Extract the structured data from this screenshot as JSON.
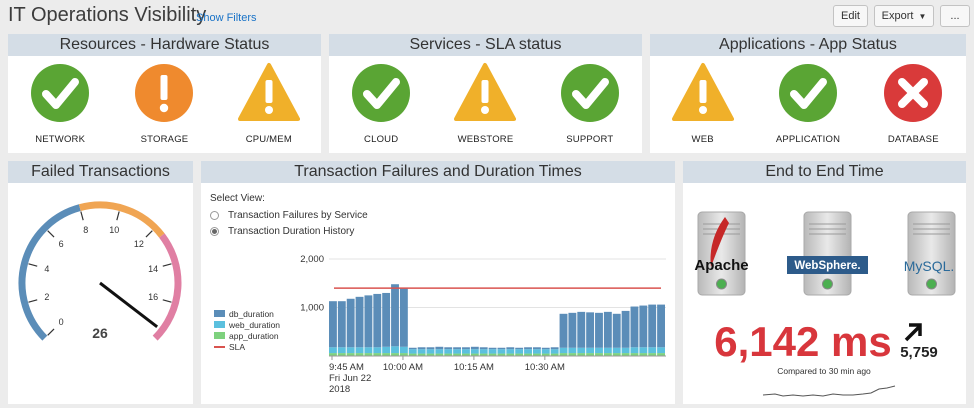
{
  "header": {
    "title": "IT Operations Visibility",
    "show_filters": "Show Filters",
    "edit": "Edit",
    "export": "Export",
    "more": "..."
  },
  "colors": {
    "ok": "#5aa534",
    "warn": "#f0b02a",
    "critical": "#d93a3a",
    "storage": "#ef8a2e",
    "panel_header": "#d4dde6",
    "bar": "#5b8db8",
    "sla": "#d9534f",
    "big_number": "#d8363c"
  },
  "resources": {
    "title": "Resources - Hardware Status",
    "items": [
      {
        "label": "NETWORK",
        "status": "ok",
        "icon": "check-icon"
      },
      {
        "label": "STORAGE",
        "status": "storage",
        "icon": "exclamation-icon"
      },
      {
        "label": "CPU/MEM",
        "status": "warn",
        "icon": "warning-icon"
      }
    ]
  },
  "services": {
    "title": "Services - SLA status",
    "items": [
      {
        "label": "CLOUD",
        "status": "ok",
        "icon": "check-icon"
      },
      {
        "label": "WEBSTORE",
        "status": "warn",
        "icon": "warning-icon"
      },
      {
        "label": "SUPPORT",
        "status": "ok",
        "icon": "check-icon"
      }
    ]
  },
  "applications": {
    "title": "Applications - App Status",
    "items": [
      {
        "label": "WEB",
        "status": "warn",
        "icon": "warning-icon"
      },
      {
        "label": "APPLICATION",
        "status": "ok",
        "icon": "check-icon"
      },
      {
        "label": "DATABASE",
        "status": "critical",
        "icon": "x-icon"
      }
    ]
  },
  "failed": {
    "title": "Failed Transactions",
    "value": "26",
    "ticks": [
      "0",
      "2",
      "4",
      "6",
      "8",
      "10",
      "12",
      "14",
      "16"
    ]
  },
  "txn": {
    "title": "Transaction Failures and Duration Times",
    "select_view": "Select View:",
    "options": [
      {
        "label": "Transaction Failures by Service",
        "selected": false
      },
      {
        "label": "Transaction Duration History",
        "selected": true
      }
    ],
    "legend": [
      "db_duration",
      "web_duration",
      "app_duration",
      "SLA"
    ]
  },
  "e2e": {
    "title": "End to End Time",
    "servers": [
      "Apache",
      "WebSphere.",
      "MySQL."
    ],
    "value": "6,142 ms",
    "prev": "5,759",
    "compare": "Compared to 30 min ago"
  },
  "chart_data": {
    "type": "bar",
    "stacked": true,
    "title": "",
    "ylim": [
      0,
      2000
    ],
    "yticks": [
      "2,000",
      "1,000"
    ],
    "ytick_values": [
      2000,
      1000
    ],
    "xticks": [
      {
        "label": "9:45 AM\nFri Jun 22\n2018",
        "index": 0
      },
      {
        "label": "10:00 AM",
        "index": 8
      },
      {
        "label": "10:15 AM",
        "index": 16
      },
      {
        "label": "10:30 AM",
        "index": 24
      }
    ],
    "sla": 1400,
    "series": [
      {
        "name": "db_duration",
        "color": "#5b8db8",
        "values": [
          950,
          950,
          1000,
          1040,
          1070,
          1100,
          1110,
          1280,
          1200,
          30,
          40,
          40,
          50,
          40,
          40,
          40,
          50,
          40,
          30,
          30,
          40,
          30,
          40,
          40,
          30,
          40,
          700,
          720,
          740,
          730,
          720,
          740,
          700,
          760,
          840,
          860,
          880,
          880
        ]
      },
      {
        "name": "web_duration",
        "color": "#5bc0de",
        "values": [
          120,
          120,
          120,
          120,
          120,
          120,
          130,
          140,
          130,
          90,
          90,
          90,
          90,
          90,
          90,
          90,
          90,
          90,
          90,
          90,
          90,
          90,
          90,
          90,
          90,
          90,
          110,
          110,
          110,
          110,
          110,
          110,
          110,
          110,
          120,
          120,
          120,
          120
        ]
      },
      {
        "name": "app_duration",
        "color": "#7ed17e",
        "values": [
          60,
          60,
          60,
          60,
          60,
          60,
          60,
          60,
          60,
          50,
          50,
          50,
          50,
          50,
          50,
          50,
          50,
          50,
          50,
          50,
          50,
          50,
          50,
          50,
          50,
          50,
          60,
          60,
          60,
          60,
          60,
          60,
          60,
          60,
          60,
          60,
          60,
          60
        ]
      }
    ]
  }
}
